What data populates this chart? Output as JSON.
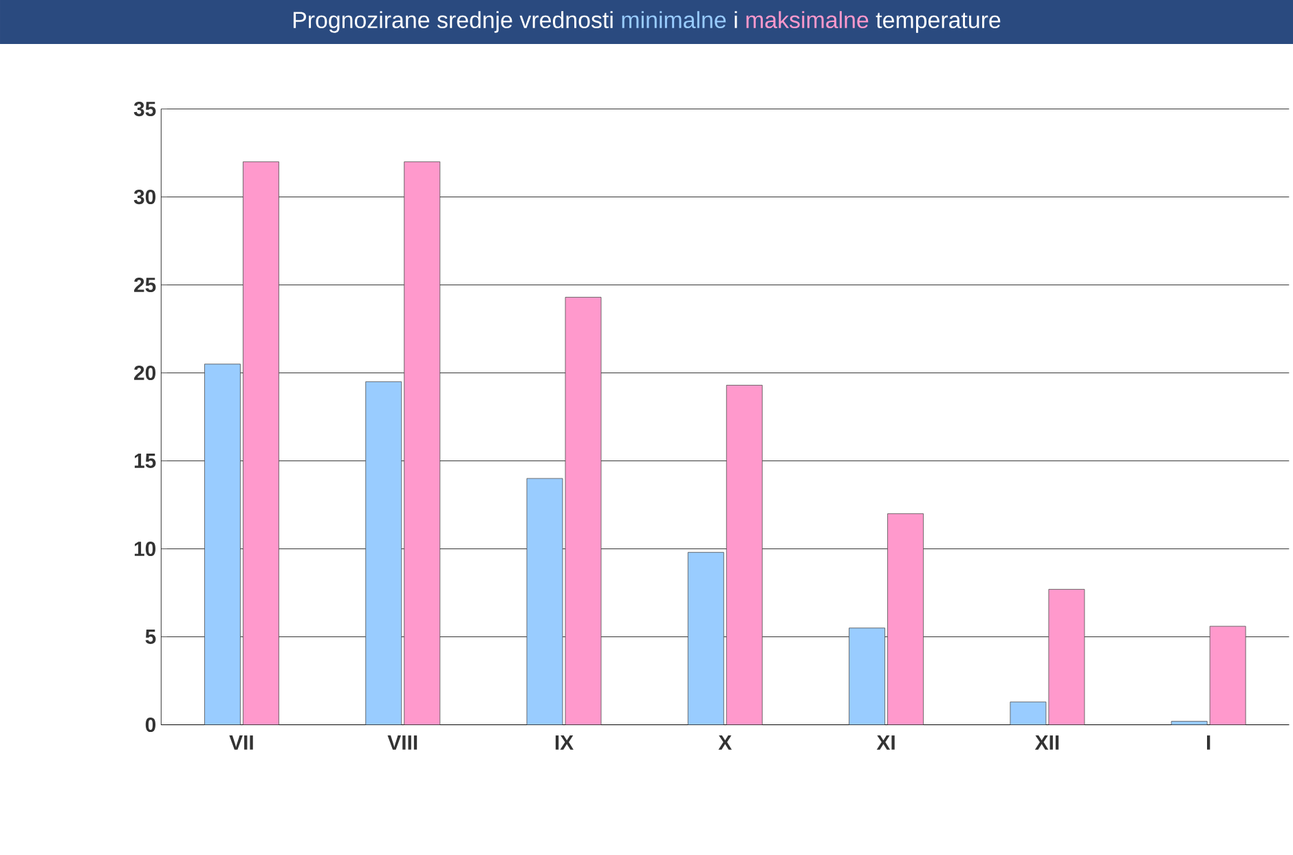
{
  "chart_data": {
    "type": "bar",
    "title": "Prognozirane srednje vrednosti",
    "annotations": [
      "i",
      "temperature"
    ],
    "categories": [
      "VII",
      "VIII",
      "IX",
      "X",
      "XI",
      "XII",
      "I"
    ],
    "series": [
      {
        "name": "minimalne",
        "color": "#99ccff",
        "values": [
          20.5,
          19.5,
          14,
          9.8,
          5.5,
          1.3,
          0.2
        ]
      },
      {
        "name": "maksimalne",
        "color": "#ff99cc",
        "values": [
          32,
          32,
          24.3,
          19.3,
          12,
          7.7,
          5.6
        ]
      }
    ],
    "ylim": [
      0,
      35
    ],
    "yticks": [
      0,
      5,
      10,
      15,
      20,
      25,
      30,
      35
    ],
    "grid": "y",
    "legend": false
  }
}
